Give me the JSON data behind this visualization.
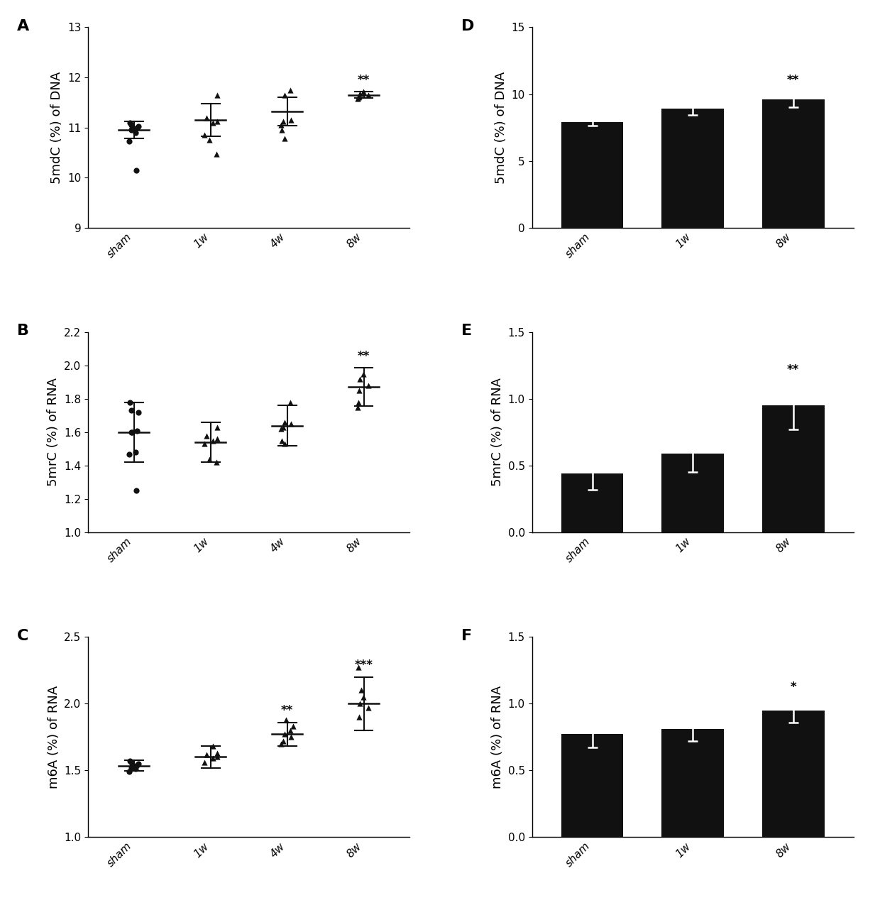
{
  "panel_A": {
    "label": "A",
    "ylabel": "5mdC (%) of DNA",
    "ylim": [
      9,
      13
    ],
    "yticks": [
      9,
      10,
      11,
      12,
      13
    ],
    "groups": [
      "sham",
      "1w",
      "4w",
      "8w"
    ],
    "means": [
      10.95,
      11.15,
      11.32,
      11.65
    ],
    "sds": [
      0.17,
      0.33,
      0.28,
      0.065
    ],
    "points": [
      [
        11.1,
        11.05,
        11.02,
        11.0,
        10.98,
        10.95,
        10.9,
        10.72,
        10.15
      ],
      [
        11.65,
        11.2,
        11.12,
        11.1,
        10.85,
        10.75,
        10.47
      ],
      [
        11.75,
        11.65,
        11.15,
        11.12,
        11.05,
        10.95,
        10.78
      ],
      [
        11.72,
        11.68,
        11.65,
        11.62,
        11.6,
        11.57
      ]
    ],
    "markers": [
      "o",
      "^",
      "^",
      "^"
    ],
    "sig": [
      "",
      "",
      "",
      "**"
    ]
  },
  "panel_B": {
    "label": "B",
    "ylabel": "5mrC (%) of RNA",
    "ylim": [
      1.0,
      2.2
    ],
    "yticks": [
      1.0,
      1.2,
      1.4,
      1.6,
      1.8,
      2.0,
      2.2
    ],
    "groups": [
      "sham",
      "1w",
      "4w",
      "8w"
    ],
    "means": [
      1.6,
      1.54,
      1.64,
      1.87
    ],
    "sds": [
      0.18,
      0.12,
      0.12,
      0.115
    ],
    "points": [
      [
        1.78,
        1.73,
        1.72,
        1.61,
        1.6,
        1.6,
        1.48,
        1.47,
        1.25
      ],
      [
        1.63,
        1.58,
        1.56,
        1.55,
        1.53,
        1.44,
        1.42
      ],
      [
        1.78,
        1.66,
        1.65,
        1.63,
        1.62,
        1.55,
        1.53
      ],
      [
        1.95,
        1.92,
        1.88,
        1.85,
        1.78,
        1.75
      ]
    ],
    "markers": [
      "o",
      "^",
      "^",
      "^"
    ],
    "sig": [
      "",
      "",
      "",
      "**"
    ]
  },
  "panel_C": {
    "label": "C",
    "ylabel": "m6A (%) of RNA",
    "ylim": [
      1.0,
      2.5
    ],
    "yticks": [
      1.0,
      1.5,
      2.0,
      2.5
    ],
    "groups": [
      "sham",
      "1w",
      "4w",
      "8w"
    ],
    "means": [
      1.535,
      1.6,
      1.77,
      2.0
    ],
    "sds": [
      0.04,
      0.08,
      0.09,
      0.2
    ],
    "points": [
      [
        1.57,
        1.56,
        1.55,
        1.54,
        1.53,
        1.52,
        1.51,
        1.49
      ],
      [
        1.68,
        1.63,
        1.62,
        1.6,
        1.59,
        1.56
      ],
      [
        1.88,
        1.83,
        1.8,
        1.77,
        1.75,
        1.72,
        1.7
      ],
      [
        2.27,
        2.1,
        2.05,
        2.0,
        1.97,
        1.9
      ]
    ],
    "markers": [
      "o",
      "^",
      "^",
      "^"
    ],
    "sig": [
      "",
      "",
      "**",
      "***"
    ]
  },
  "panel_D": {
    "label": "D",
    "ylabel": "5mdC (%) of DNA",
    "ylim": [
      0,
      15
    ],
    "yticks": [
      0,
      5,
      10,
      15
    ],
    "groups": [
      "sham",
      "1w",
      "8w"
    ],
    "means": [
      7.9,
      8.9,
      9.6
    ],
    "errors": [
      0.28,
      0.48,
      0.58
    ],
    "sig": [
      "",
      "",
      "**"
    ]
  },
  "panel_E": {
    "label": "E",
    "ylabel": "5mrC (%) of RNA",
    "ylim": [
      0,
      1.5
    ],
    "yticks": [
      0.0,
      0.5,
      1.0,
      1.5
    ],
    "groups": [
      "sham",
      "1w",
      "8w"
    ],
    "means": [
      0.44,
      0.59,
      0.95
    ],
    "errors": [
      0.12,
      0.14,
      0.18
    ],
    "sig": [
      "",
      "",
      "**"
    ]
  },
  "panel_F": {
    "label": "F",
    "ylabel": "m6A (%) of RNA",
    "ylim": [
      0,
      1.5
    ],
    "yticks": [
      0.0,
      0.5,
      1.0,
      1.5
    ],
    "groups": [
      "sham",
      "1w",
      "8w"
    ],
    "means": [
      0.77,
      0.81,
      0.95
    ],
    "errors": [
      0.1,
      0.09,
      0.09
    ],
    "sig": [
      "",
      "",
      "*"
    ]
  },
  "bar_color": "#111111",
  "dot_color": "#111111",
  "bg_color": "#ffffff",
  "label_fontsize": 13,
  "tick_fontsize": 11,
  "panel_label_fontsize": 16,
  "sig_fontsize": 12
}
